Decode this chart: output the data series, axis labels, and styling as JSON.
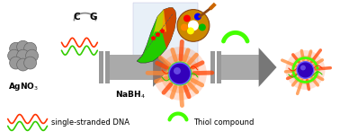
{
  "background_color": "#ffffff",
  "fig_width": 3.78,
  "fig_height": 1.56,
  "dpi": 100,
  "agno3_label": "AgNO$_3$",
  "nabh4_label": "NaBH$_4$",
  "c_label": "C",
  "g_label": "G",
  "legend_dna": "single-stranded DNA",
  "legend_thiol": "Thiol compound",
  "gray_arrow_color": "#aaaaaa",
  "gray_bar_color": "#999999",
  "gray_dark": "#777777",
  "silver_sphere_color": "#999999",
  "silver_sphere_edge": "#666666",
  "nanocluster_core_color": "#3300bb",
  "nanocluster_glow_inner": "#ff8833",
  "nanocluster_glow_outer": "#ff4400",
  "dna_color1": "#ff3300",
  "dna_color2": "#33cc00",
  "thiol_color": "#44ff00",
  "font_size_labels": 6.5,
  "font_size_legend": 6.0,
  "font_size_cg": 7.5
}
